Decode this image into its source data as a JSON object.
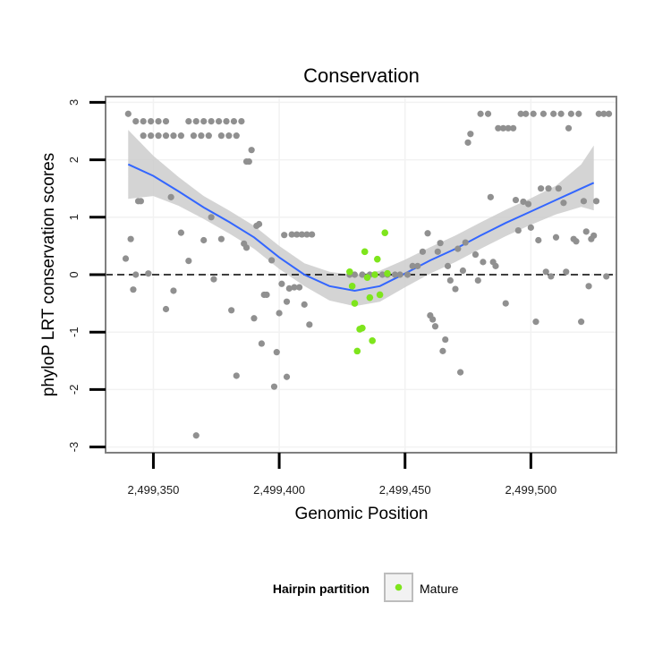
{
  "chart_data": {
    "type": "scatter",
    "title": "Conservation",
    "xlabel": "Genomic Position",
    "ylabel": "phyloP LRT conservation scores",
    "xlim": [
      2499331,
      2499534
    ],
    "ylim": [
      -3.1,
      3.1
    ],
    "x_ticks": [
      2499350,
      2499400,
      2499450,
      2499500
    ],
    "x_tick_labels": [
      "2,499,350",
      "2,499,400",
      "2,499,450",
      "2,499,500"
    ],
    "y_ticks": [
      -3,
      -2,
      -1,
      0,
      1,
      2,
      3
    ],
    "y_tick_labels": [
      "-3",
      "-2",
      "-1",
      "0",
      "1",
      "2",
      "3"
    ],
    "grid": true,
    "reference_line": {
      "y": 0,
      "style": "dashed"
    },
    "legend": {
      "title": "Hairpin partition",
      "placement": "bottom",
      "entries": [
        "Mature"
      ]
    },
    "colors": {
      "default_points": "#909090",
      "mature_points": "#7ee51c",
      "smooth_line": "#3366ff",
      "confidence_band": "#cccccc",
      "panel_border": "#7f7f7f",
      "grid": "#f2f2f2"
    },
    "series": [
      {
        "values": [
          [
            2499340,
            2.8
          ],
          [
            2499343,
            2.67
          ],
          [
            2499346,
            2.67
          ],
          [
            2499349,
            2.67
          ],
          [
            2499352,
            2.67
          ],
          [
            2499355,
            2.67
          ],
          [
            2499346,
            2.42
          ],
          [
            2499349,
            2.42
          ],
          [
            2499352,
            2.42
          ],
          [
            2499355,
            2.42
          ],
          [
            2499358,
            2.42
          ],
          [
            2499361,
            2.42
          ],
          [
            2499364,
            2.67
          ],
          [
            2499367,
            2.67
          ],
          [
            2499370,
            2.67
          ],
          [
            2499373,
            2.67
          ],
          [
            2499376,
            2.67
          ],
          [
            2499379,
            2.67
          ],
          [
            2499382,
            2.67
          ],
          [
            2499385,
            2.67
          ],
          [
            2499366,
            2.42
          ],
          [
            2499369,
            2.42
          ],
          [
            2499372,
            2.42
          ],
          [
            2499377,
            2.42
          ],
          [
            2499380,
            2.42
          ],
          [
            2499383,
            2.42
          ],
          [
            2499387,
            1.97
          ],
          [
            2499388,
            1.97
          ],
          [
            2499389,
            2.17
          ],
          [
            2499339,
            0.28
          ],
          [
            2499341,
            0.62
          ],
          [
            2499342,
            -0.26
          ],
          [
            2499343,
            0.0
          ],
          [
            2499344,
            1.28
          ],
          [
            2499345,
            1.28
          ],
          [
            2499348,
            0.02
          ],
          [
            2499355,
            -0.6
          ],
          [
            2499357,
            1.35
          ],
          [
            2499358,
            -0.28
          ],
          [
            2499361,
            0.73
          ],
          [
            2499364,
            0.24
          ],
          [
            2499367,
            -2.8
          ],
          [
            2499370,
            0.6
          ],
          [
            2499373,
            1.0
          ],
          [
            2499374,
            -0.08
          ],
          [
            2499377,
            0.62
          ],
          [
            2499381,
            -0.62
          ],
          [
            2499383,
            -1.76
          ],
          [
            2499386,
            0.54
          ],
          [
            2499387,
            0.47
          ],
          [
            2499390,
            -0.76
          ],
          [
            2499391,
            0.85
          ],
          [
            2499392,
            0.88
          ],
          [
            2499393,
            -1.2
          ],
          [
            2499394,
            -0.35
          ],
          [
            2499395,
            -0.35
          ],
          [
            2499397,
            0.25
          ],
          [
            2499398,
            -1.95
          ],
          [
            2499399,
            -1.35
          ],
          [
            2499400,
            -0.67
          ],
          [
            2499401,
            -0.16
          ],
          [
            2499402,
            0.69
          ],
          [
            2499403,
            -1.78
          ],
          [
            2499403,
            -0.47
          ],
          [
            2499404,
            -0.24
          ],
          [
            2499405,
            0.7
          ],
          [
            2499406,
            -0.22
          ],
          [
            2499407,
            0.7
          ],
          [
            2499408,
            -0.22
          ],
          [
            2499409,
            0.7
          ],
          [
            2499410,
            -0.52
          ],
          [
            2499411,
            0.7
          ],
          [
            2499412,
            -0.87
          ],
          [
            2499413,
            0.7
          ],
          [
            2499428,
            0.0
          ],
          [
            2499430,
            0.0
          ],
          [
            2499433,
            0.0
          ],
          [
            2499436,
            0.0
          ],
          [
            2499438,
            0.0
          ],
          [
            2499441,
            0.0
          ],
          [
            2499443,
            0.0
          ],
          [
            2499446,
            0.0
          ],
          [
            2499448,
            0.0
          ],
          [
            2499451,
            0.0
          ],
          [
            2499453,
            0.15
          ],
          [
            2499455,
            0.15
          ],
          [
            2499457,
            0.4
          ],
          [
            2499459,
            0.72
          ],
          [
            2499460,
            -0.71
          ],
          [
            2499461,
            -0.78
          ],
          [
            2499462,
            -0.9
          ],
          [
            2499463,
            0.4
          ],
          [
            2499464,
            0.55
          ],
          [
            2499465,
            -1.33
          ],
          [
            2499466,
            -1.13
          ],
          [
            2499467,
            0.15
          ],
          [
            2499468,
            -0.1
          ],
          [
            2499470,
            -0.25
          ],
          [
            2499471,
            0.45
          ],
          [
            2499472,
            -1.7
          ],
          [
            2499473,
            0.07
          ],
          [
            2499474,
            0.56
          ],
          [
            2499475,
            2.3
          ],
          [
            2499476,
            2.45
          ],
          [
            2499478,
            0.35
          ],
          [
            2499479,
            -0.1
          ],
          [
            2499480,
            2.8
          ],
          [
            2499481,
            0.22
          ],
          [
            2499483,
            2.8
          ],
          [
            2499484,
            1.35
          ],
          [
            2499485,
            0.22
          ],
          [
            2499486,
            0.15
          ],
          [
            2499487,
            2.55
          ],
          [
            2499489,
            2.55
          ],
          [
            2499490,
            -0.5
          ],
          [
            2499491,
            2.55
          ],
          [
            2499493,
            2.55
          ],
          [
            2499494,
            1.3
          ],
          [
            2499495,
            0.77
          ],
          [
            2499496,
            2.8
          ],
          [
            2499497,
            1.27
          ],
          [
            2499498,
            2.8
          ],
          [
            2499499,
            1.23
          ],
          [
            2499500,
            0.82
          ],
          [
            2499501,
            2.8
          ],
          [
            2499502,
            -0.82
          ],
          [
            2499503,
            0.6
          ],
          [
            2499504,
            1.5
          ],
          [
            2499505,
            2.8
          ],
          [
            2499506,
            0.05
          ],
          [
            2499507,
            1.5
          ],
          [
            2499508,
            -0.03
          ],
          [
            2499509,
            2.8
          ],
          [
            2499510,
            0.65
          ],
          [
            2499511,
            1.5
          ],
          [
            2499512,
            2.8
          ],
          [
            2499513,
            1.25
          ],
          [
            2499514,
            0.05
          ],
          [
            2499515,
            2.55
          ],
          [
            2499516,
            2.8
          ],
          [
            2499517,
            0.62
          ],
          [
            2499518,
            0.58
          ],
          [
            2499519,
            2.8
          ],
          [
            2499520,
            -0.82
          ],
          [
            2499521,
            1.28
          ],
          [
            2499522,
            0.75
          ],
          [
            2499523,
            -0.2
          ],
          [
            2499524,
            0.62
          ],
          [
            2499525,
            0.68
          ],
          [
            2499526,
            1.28
          ],
          [
            2499527,
            2.8
          ],
          [
            2499529,
            2.8
          ],
          [
            2499530,
            -0.03
          ],
          [
            2499531,
            2.8
          ]
        ]
      },
      {
        "name": "Mature",
        "values": [
          [
            2499428,
            0.05
          ],
          [
            2499429,
            -0.2
          ],
          [
            2499430,
            -0.5
          ],
          [
            2499431,
            -1.33
          ],
          [
            2499432,
            -0.95
          ],
          [
            2499433,
            -0.93
          ],
          [
            2499434,
            0.4
          ],
          [
            2499435,
            -0.05
          ],
          [
            2499436,
            -0.4
          ],
          [
            2499437,
            -1.15
          ],
          [
            2499438,
            0.0
          ],
          [
            2499439,
            0.27
          ],
          [
            2499440,
            -0.35
          ],
          [
            2499442,
            0.73
          ],
          [
            2499443,
            0.02
          ]
        ]
      }
    ],
    "smooth": {
      "x": [
        2499340,
        2499350,
        2499360,
        2499370,
        2499380,
        2499390,
        2499400,
        2499410,
        2499420,
        2499430,
        2499440,
        2499450,
        2499460,
        2499470,
        2499480,
        2499490,
        2499500,
        2499510,
        2499520,
        2499525
      ],
      "y": [
        1.92,
        1.72,
        1.45,
        1.17,
        0.92,
        0.65,
        0.3,
        0.0,
        -0.2,
        -0.28,
        -0.2,
        0.02,
        0.25,
        0.45,
        0.68,
        0.9,
        1.1,
        1.3,
        1.5,
        1.6
      ],
      "lower": [
        1.32,
        1.37,
        1.2,
        0.97,
        0.72,
        0.45,
        0.1,
        -0.2,
        -0.45,
        -0.55,
        -0.47,
        -0.22,
        0.02,
        0.22,
        0.45,
        0.67,
        0.87,
        1.05,
        1.18,
        1.12
      ],
      "upper": [
        2.52,
        2.07,
        1.7,
        1.37,
        1.12,
        0.85,
        0.5,
        0.2,
        0.05,
        -0.01,
        0.07,
        0.26,
        0.48,
        0.68,
        0.91,
        1.13,
        1.33,
        1.55,
        1.92,
        2.25
      ]
    }
  }
}
